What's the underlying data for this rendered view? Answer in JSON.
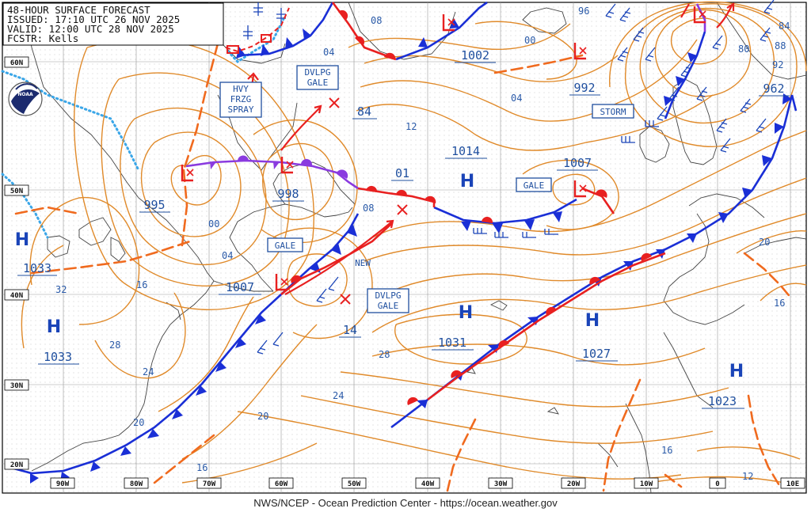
{
  "header": {
    "line1": "48-HOUR SURFACE FORECAST",
    "line2": "ISSUED: 17:10 UTC 26 NOV 2025",
    "line3": "VALID:  12:00 UTC 28 NOV 2025",
    "line4": "FCSTR:  Kells"
  },
  "footer": "NWS/NCEP - Ocean Prediction Center - https://ocean.weather.gov",
  "logo_text": "NOAA",
  "lat_labels": [
    "60N",
    "50N",
    "40N",
    "30N",
    "20N"
  ],
  "lon_labels": [
    "90W",
    "80W",
    "70W",
    "60W",
    "50W",
    "40W",
    "30W",
    "20W",
    "10W",
    "0",
    "10E"
  ],
  "highs": [
    {
      "id": "h1",
      "symbol": "H",
      "pressure": "1033"
    },
    {
      "id": "h2",
      "symbol": "H",
      "pressure": "1033"
    },
    {
      "id": "h3",
      "symbol": "H",
      "pressure": "1031"
    },
    {
      "id": "h4",
      "symbol": "H",
      "pressure": "1027"
    },
    {
      "id": "h5",
      "symbol": "H",
      "pressure": "1023"
    },
    {
      "id": "h6",
      "symbol": "H",
      "pressure": "1014"
    }
  ],
  "lows": [
    {
      "id": "l1",
      "pressure": "995"
    },
    {
      "id": "l2",
      "pressure": "998"
    },
    {
      "id": "l3",
      "pressure": "1007"
    },
    {
      "id": "l4",
      "pressure": "1002"
    },
    {
      "id": "l5",
      "pressure": "992"
    },
    {
      "id": "l6",
      "pressure": "1007"
    },
    {
      "id": "l7",
      "pressure": "962"
    },
    {
      "id": "l8",
      "pressure": ""
    },
    {
      "id": "l9",
      "pressure": ""
    }
  ],
  "extra_pressures": [
    "84",
    "01"
  ],
  "warnings": {
    "hvy_frzg_spray": [
      "HVY",
      "FRZG",
      "SPRAY"
    ],
    "dvlpg_gale_north": [
      "DVLPG",
      "GALE"
    ],
    "dvlpg_gale_south": [
      "DVLPG",
      "GALE"
    ],
    "gale_1": "GALE",
    "gale_2": "GALE",
    "storm": "STORM",
    "new_label": "NEW"
  },
  "isobar_labels": [
    "08",
    "04",
    "00",
    "96",
    "04",
    "00",
    "04",
    "08",
    "12",
    "16",
    "20",
    "24",
    "28",
    "32",
    "16",
    "20",
    "24",
    "28",
    "20",
    "16",
    "12",
    "16",
    "80",
    "84",
    "88",
    "92"
  ],
  "colors": {
    "isobar": "#e08a2a",
    "trough": "#f06a1e",
    "cold_front": "#1a2fd6",
    "warm_front": "#e82020",
    "occluded": "#8a3adf",
    "coast": "#444444",
    "ice": "#3aa6e8",
    "text": "#1f4f9f"
  }
}
